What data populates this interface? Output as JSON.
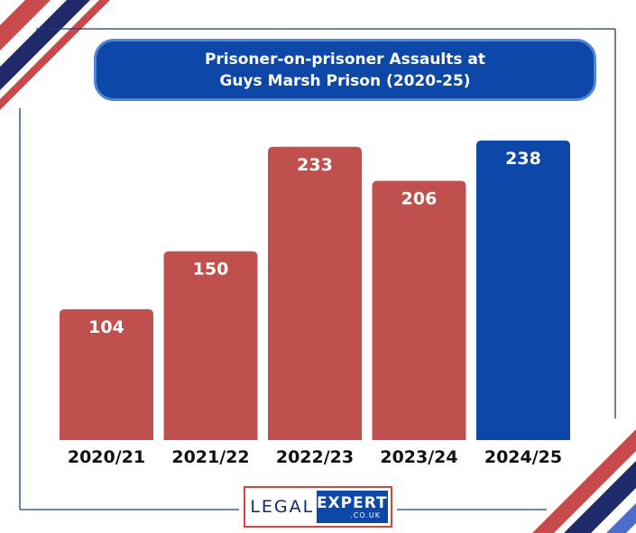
{
  "title": {
    "line1": "Prisoner-on-prisoner Assaults at",
    "line2": "Guys Marsh Prison (2020-25)"
  },
  "colors": {
    "default_bar": "#c0504d",
    "highlight_bar": "#0d47a8",
    "frame": "#1c3d78"
  },
  "chart_data": {
    "type": "bar",
    "title": "Prisoner-on-prisoner Assaults at Guys Marsh Prison (2020-25)",
    "categories": [
      "2020/21",
      "2021/22",
      "2022/23",
      "2023/24",
      "2024/25"
    ],
    "values": [
      104,
      150,
      233,
      206,
      238
    ],
    "highlighted_category": "2024/25",
    "data_labels": "inside-top",
    "grid": false,
    "legend": "none",
    "ylim": [
      0,
      245
    ]
  },
  "logo": {
    "left": "LEGAL",
    "right": "EXPERT",
    "sub": ".CO.UK"
  }
}
